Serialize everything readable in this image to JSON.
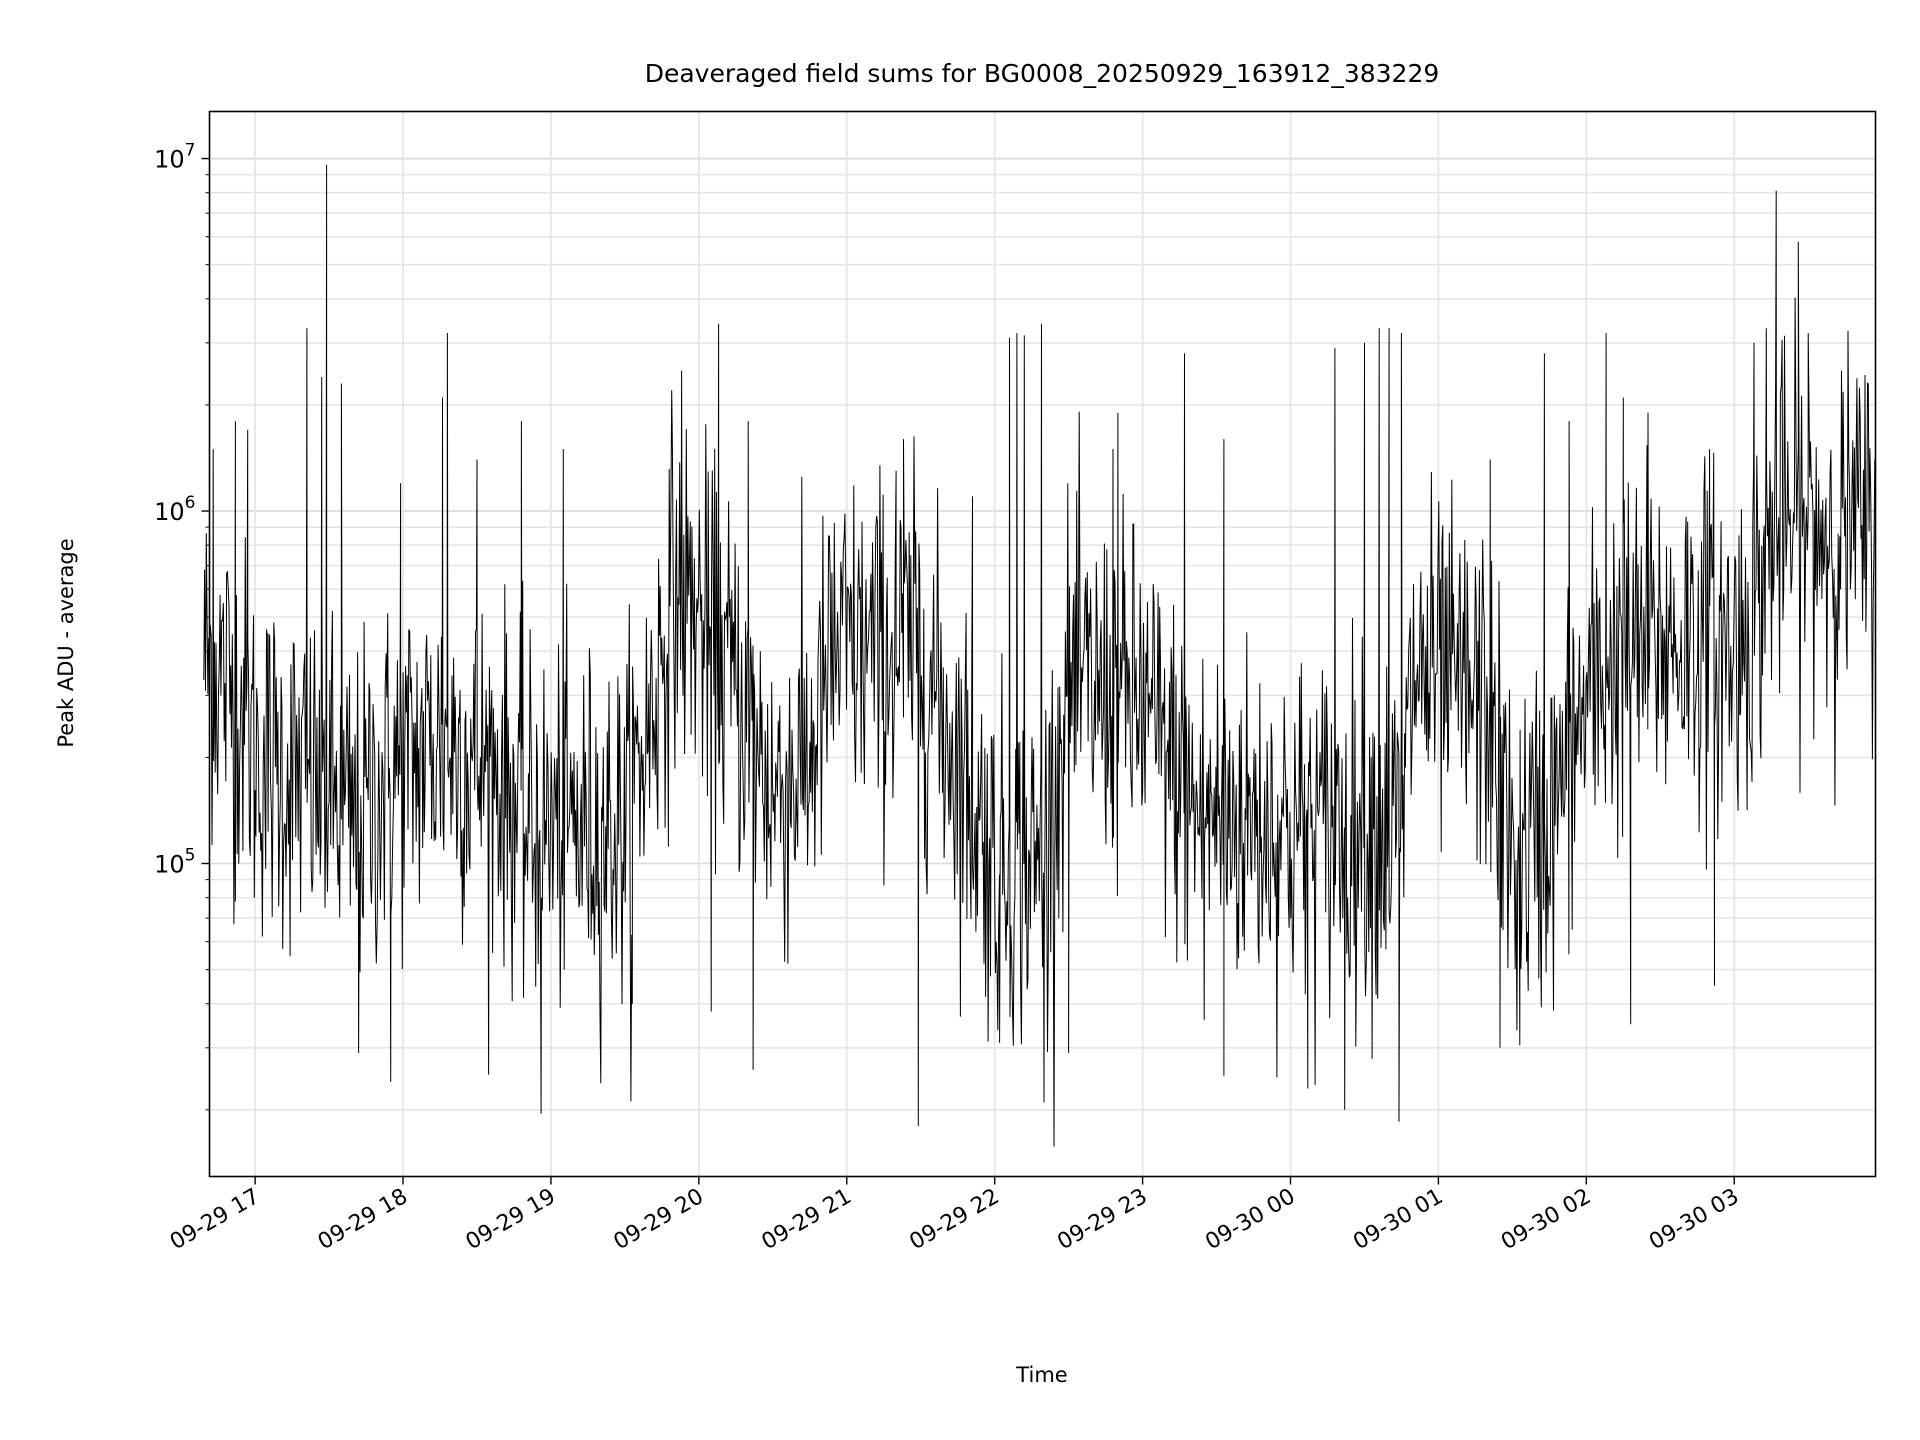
{
  "chart_data": {
    "type": "line",
    "title": "Deaveraged field sums for BG0008_20250929_163912_383229",
    "xlabel": "Time",
    "ylabel": "Peak ADU - average",
    "yscale": "log",
    "ylim": [
      12940,
      13600000
    ],
    "xlim_minutes": [
      1001.5,
      1677.3
    ],
    "x_unit": "minutes since 2025-09-29 00:00",
    "grid": true,
    "line_color": "#000000",
    "grid_color": "#e6e6e6",
    "x_ticks": [
      {
        "t": 1020,
        "label": "09-29 17"
      },
      {
        "t": 1080,
        "label": "09-29 18"
      },
      {
        "t": 1140,
        "label": "09-29 19"
      },
      {
        "t": 1200,
        "label": "09-29 20"
      },
      {
        "t": 1260,
        "label": "09-29 21"
      },
      {
        "t": 1320,
        "label": "09-29 22"
      },
      {
        "t": 1380,
        "label": "09-29 23"
      },
      {
        "t": 1440,
        "label": "09-30 00"
      },
      {
        "t": 1500,
        "label": "09-30 01"
      },
      {
        "t": 1560,
        "label": "09-30 02"
      },
      {
        "t": 1620,
        "label": "09-30 03"
      }
    ],
    "y_ticks": [
      {
        "value": 100000,
        "base": "10",
        "exp": "5"
      },
      {
        "value": 1000000,
        "base": "10",
        "exp": "6"
      },
      {
        "value": 10000000,
        "base": "10",
        "exp": "7"
      }
    ],
    "series_start": 999.2,
    "series_end": 1677.3,
    "sample_interval_min": 0.33,
    "noise_log10_sigma": 0.25,
    "trend_log10_median": [
      [
        999,
        5.6
      ],
      [
        1015,
        5.45
      ],
      [
        1020,
        5.3
      ],
      [
        1050,
        5.2
      ],
      [
        1060,
        5.1
      ],
      [
        1075,
        5.25
      ],
      [
        1095,
        5.35
      ],
      [
        1120,
        5.25
      ],
      [
        1130,
        5.1
      ],
      [
        1170,
        5.1
      ],
      [
        1180,
        5.4
      ],
      [
        1190,
        5.8
      ],
      [
        1200,
        5.7
      ],
      [
        1215,
        5.5
      ],
      [
        1230,
        5.2
      ],
      [
        1245,
        5.3
      ],
      [
        1255,
        5.6
      ],
      [
        1290,
        5.6
      ],
      [
        1300,
        5.4
      ],
      [
        1320,
        5.0
      ],
      [
        1340,
        5.0
      ],
      [
        1350,
        5.5
      ],
      [
        1380,
        5.45
      ],
      [
        1400,
        5.15
      ],
      [
        1440,
        5.1
      ],
      [
        1485,
        5.1
      ],
      [
        1490,
        5.55
      ],
      [
        1520,
        5.45
      ],
      [
        1530,
        5.0
      ],
      [
        1545,
        5.1
      ],
      [
        1560,
        5.45
      ],
      [
        1575,
        5.6
      ],
      [
        1605,
        5.65
      ],
      [
        1620,
        5.6
      ],
      [
        1630,
        5.75
      ],
      [
        1635,
        5.95
      ],
      [
        1677,
        5.95
      ]
    ],
    "spikes": [
      [
        1003,
        1500000
      ],
      [
        1012,
        1800000
      ],
      [
        1017,
        1700000
      ],
      [
        1041,
        3300000
      ],
      [
        1049,
        9600000
      ],
      [
        1047,
        2400000
      ],
      [
        1055,
        2300000
      ],
      [
        1079,
        1200000
      ],
      [
        1098,
        3200000
      ],
      [
        1096,
        2100000
      ],
      [
        1110,
        1400000
      ],
      [
        1128,
        1800000
      ],
      [
        1145,
        1500000
      ],
      [
        1189,
        2200000
      ],
      [
        1193,
        2500000
      ],
      [
        1208,
        3400000
      ],
      [
        1220,
        1800000
      ],
      [
        1280,
        1300000
      ],
      [
        1283,
        1600000
      ],
      [
        1311,
        1100000
      ],
      [
        1326,
        3100000
      ],
      [
        1329,
        3200000
      ],
      [
        1332,
        3150000
      ],
      [
        1339,
        3400000
      ],
      [
        1370,
        1900000
      ],
      [
        1368,
        1500000
      ],
      [
        1397,
        2800000
      ],
      [
        1413,
        1600000
      ],
      [
        1458,
        2900000
      ],
      [
        1470,
        3000000
      ],
      [
        1476,
        3300000
      ],
      [
        1480,
        3300000
      ],
      [
        1485,
        3200000
      ],
      [
        1521,
        1400000
      ],
      [
        1543,
        2800000
      ],
      [
        1553,
        1800000
      ],
      [
        1568,
        3200000
      ],
      [
        1575,
        2100000
      ],
      [
        1585,
        1900000
      ],
      [
        1610,
        1500000
      ],
      [
        1628,
        3000000
      ],
      [
        1633,
        3300000
      ],
      [
        1637,
        8100000
      ],
      [
        1646,
        5800000
      ],
      [
        1650,
        3200000
      ],
      [
        1012,
        78000
      ],
      [
        1062,
        29000
      ],
      [
        1075,
        24000
      ],
      [
        1136,
        19500
      ],
      [
        1173,
        40000
      ],
      [
        1205,
        38000
      ],
      [
        1222,
        26000
      ],
      [
        1289,
        18000
      ],
      [
        1322,
        31000
      ],
      [
        1340,
        21000
      ],
      [
        1350,
        29000
      ],
      [
        1405,
        36000
      ],
      [
        1413,
        25000
      ],
      [
        1447,
        23000
      ],
      [
        1462,
        20000
      ],
      [
        1484,
        18500
      ],
      [
        1525,
        30000
      ],
      [
        1533,
        30500
      ],
      [
        1578,
        35000
      ],
      [
        1612,
        45000
      ]
    ]
  }
}
